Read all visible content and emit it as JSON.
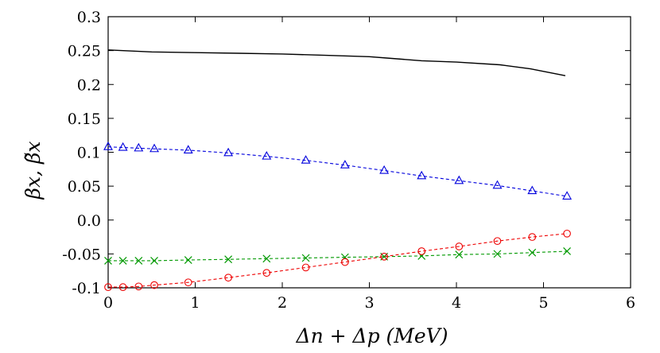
{
  "chart_data": {
    "type": "line",
    "xlabel": "Δn + Δp (MeV)",
    "ylabel": "βx, β̃x",
    "xlim": [
      0,
      6
    ],
    "ylim": [
      -0.1,
      0.3
    ],
    "xticks": [
      "0",
      "1",
      "2",
      "3",
      "4",
      "5",
      "6"
    ],
    "yticks": [
      "-0.1",
      "-0.05",
      "0.0",
      "0.05",
      "0.1",
      "0.15",
      "0.2",
      "0.25",
      "0.3"
    ],
    "grid": false,
    "legend": "none",
    "series": [
      {
        "style": "solid",
        "marker": "none",
        "color": "#000000",
        "x": [
          0,
          0.5,
          1.0,
          1.5,
          2.0,
          2.5,
          3.0,
          3.2,
          3.6,
          4.0,
          4.5,
          4.85,
          5.25
        ],
        "y": [
          0.251,
          0.248,
          0.247,
          0.246,
          0.245,
          0.243,
          0.241,
          0.239,
          0.235,
          0.233,
          0.229,
          0.223,
          0.213
        ]
      },
      {
        "style": "dashed",
        "marker": "triangle",
        "color": "#0000dd",
        "x": [
          0,
          0.17,
          0.35,
          0.53,
          0.92,
          1.38,
          1.82,
          2.27,
          2.72,
          3.17,
          3.6,
          4.03,
          4.47,
          4.87,
          5.27
        ],
        "y": [
          0.108,
          0.107,
          0.106,
          0.105,
          0.103,
          0.099,
          0.094,
          0.088,
          0.081,
          0.073,
          0.065,
          0.058,
          0.051,
          0.043,
          0.035
        ]
      },
      {
        "style": "dashed",
        "marker": "x",
        "color": "#009900",
        "x": [
          0,
          0.17,
          0.35,
          0.53,
          0.92,
          1.38,
          1.82,
          2.27,
          2.72,
          3.17,
          3.6,
          4.03,
          4.47,
          4.87,
          5.27
        ],
        "y": [
          -0.06,
          -0.06,
          -0.06,
          -0.06,
          -0.059,
          -0.058,
          -0.057,
          -0.056,
          -0.055,
          -0.054,
          -0.053,
          -0.051,
          -0.05,
          -0.048,
          -0.046
        ]
      },
      {
        "style": "dashed",
        "marker": "circle",
        "color": "#ee0000",
        "x": [
          0,
          0.17,
          0.35,
          0.53,
          0.92,
          1.38,
          1.82,
          2.27,
          2.72,
          3.17,
          3.6,
          4.03,
          4.47,
          4.87,
          5.27
        ],
        "y": [
          -0.099,
          -0.099,
          -0.098,
          -0.096,
          -0.092,
          -0.085,
          -0.078,
          -0.07,
          -0.062,
          -0.054,
          -0.046,
          -0.039,
          -0.031,
          -0.025,
          -0.02
        ]
      }
    ]
  }
}
